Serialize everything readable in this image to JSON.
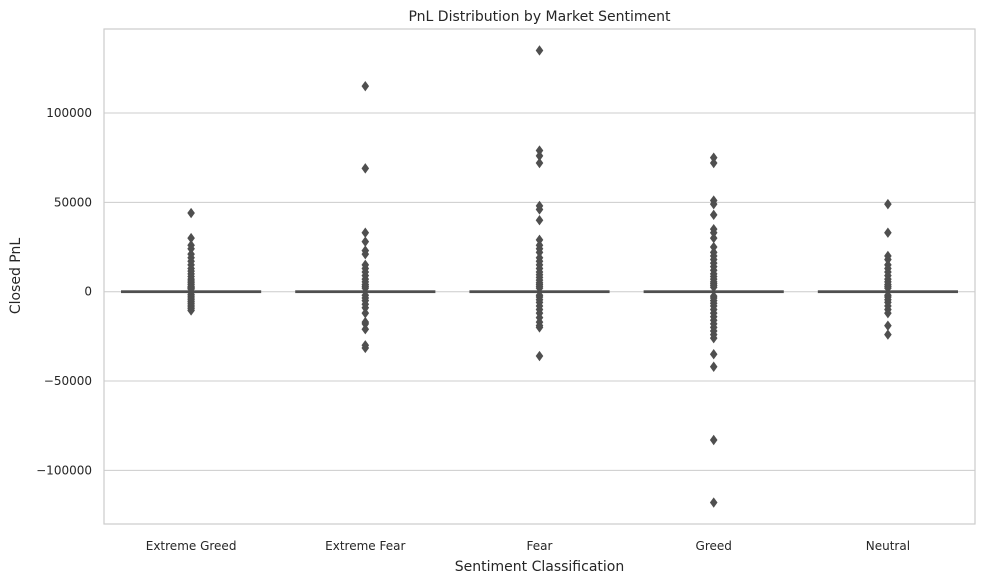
{
  "chart_data": {
    "type": "box",
    "title": "PnL Distribution by Market Sentiment",
    "xlabel": "Sentiment Classification",
    "ylabel": "Closed PnL",
    "ylim": [
      -130000,
      147000
    ],
    "yticks": [
      {
        "value": 100000,
        "label": "100000"
      },
      {
        "value": 50000,
        "label": "50000"
      },
      {
        "value": 0,
        "label": "0"
      },
      {
        "value": -50000,
        "label": "−50000"
      },
      {
        "value": -100000,
        "label": "−100000"
      }
    ],
    "grid": true,
    "box_color": "#4f4f4f",
    "categories": [
      "Extreme Greed",
      "Extreme Fear",
      "Fear",
      "Greed",
      "Neutral"
    ],
    "series": [
      {
        "category": "Extreme Greed",
        "median": 0,
        "outliers": [
          44000,
          30000,
          26000,
          24000,
          21000,
          19000,
          17000,
          15000,
          13000,
          11500,
          10000,
          8500,
          7000,
          6000,
          5000,
          4000,
          3000,
          2500,
          2000,
          1500,
          -1500,
          -2500,
          -3500,
          -4500,
          -5500,
          -6500,
          -7500,
          -8500,
          -9500,
          -10500
        ]
      },
      {
        "category": "Extreme Fear",
        "median": 0,
        "outliers": [
          115000,
          69000,
          33000,
          28000,
          23000,
          21000,
          15000,
          13000,
          11000,
          9000,
          7000,
          5500,
          4000,
          3000,
          2000,
          -2000,
          -3500,
          -5000,
          -7000,
          -9000,
          -12000,
          -17000,
          -18000,
          -21000,
          -30000,
          -31500
        ]
      },
      {
        "category": "Fear",
        "median": 0,
        "outliers": [
          135000,
          79000,
          76000,
          72000,
          48000,
          46000,
          40000,
          29000,
          26000,
          24000,
          22000,
          19000,
          17000,
          15000,
          13000,
          11000,
          9500,
          8000,
          6500,
          5000,
          4000,
          3000,
          2000,
          -2000,
          -3000,
          -4500,
          -6000,
          -8000,
          -10000,
          -12000,
          -14500,
          -17000,
          -19000,
          -20000,
          -36000
        ]
      },
      {
        "category": "Greed",
        "median": 0,
        "outliers": [
          75000,
          72000,
          51000,
          49000,
          43000,
          35000,
          33000,
          30000,
          25000,
          22000,
          20000,
          18000,
          16000,
          14000,
          12000,
          10000,
          8500,
          7000,
          5500,
          4500,
          3500,
          2500,
          -2500,
          -3500,
          -5000,
          -6500,
          -8000,
          -10000,
          -12000,
          -14000,
          -16000,
          -18000,
          -20000,
          -22000,
          -24000,
          -26000,
          -35000,
          -42000,
          -83000,
          -118000
        ]
      },
      {
        "category": "Neutral",
        "median": 0,
        "outliers": [
          49000,
          33000,
          20000,
          18000,
          15000,
          13000,
          11000,
          9000,
          7000,
          5500,
          4000,
          3000,
          2000,
          -2000,
          -3000,
          -4500,
          -6000,
          -8000,
          -10000,
          -12000,
          -19000,
          -24000
        ]
      }
    ]
  }
}
